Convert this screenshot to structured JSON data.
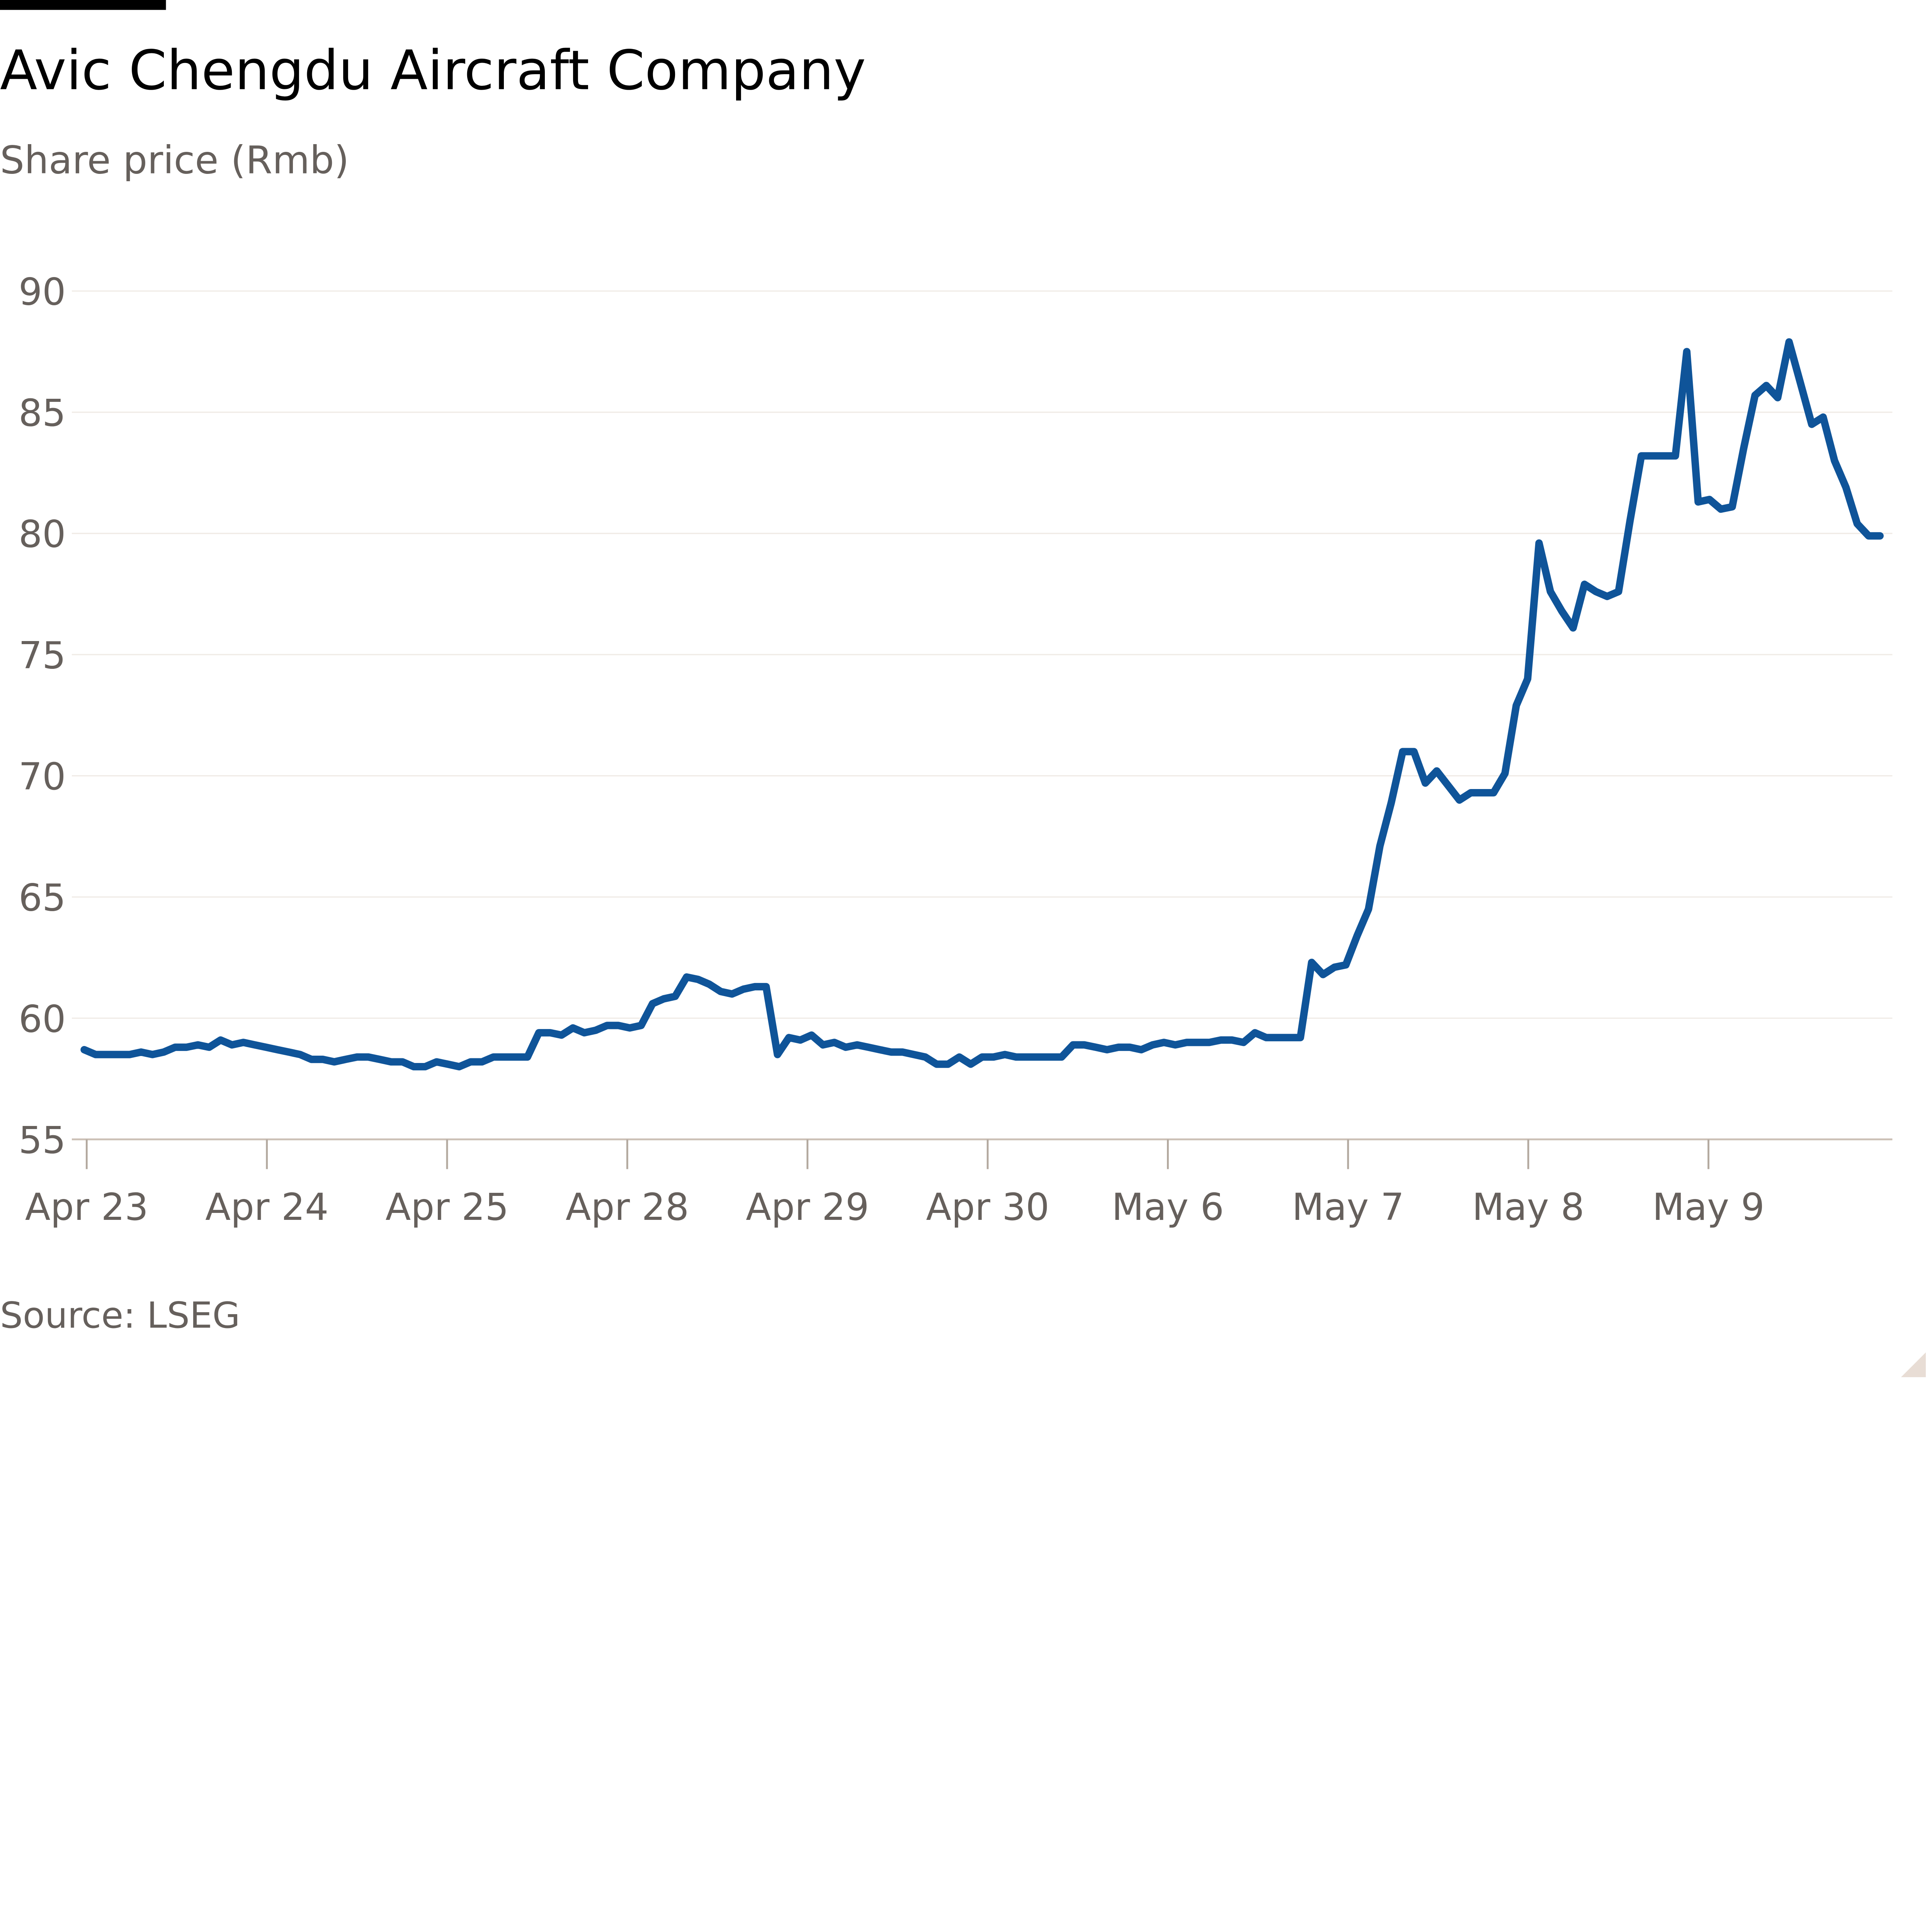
{
  "chart_data": {
    "type": "line",
    "title": "Avic Chengdu Aircraft Company",
    "subtitle": "Share price (Rmb)",
    "source": "Source: LSEG",
    "x_tick_labels": [
      "Apr 23",
      "Apr 24",
      "Apr 25",
      "Apr 28",
      "Apr 29",
      "Apr 30",
      "May 6",
      "May 7",
      "May 8",
      "May 9"
    ],
    "y_ticks": [
      55,
      60,
      65,
      70,
      75,
      80,
      85,
      90
    ],
    "ylim": [
      55,
      90
    ],
    "grid": true,
    "line_color": "#0f5499",
    "series": [
      {
        "values": [
          58.7,
          58.5,
          58.5,
          58.5,
          58.5,
          58.6,
          58.5,
          58.6,
          58.8,
          58.8,
          58.9,
          58.8,
          59.1,
          58.9,
          59.0,
          58.9,
          58.8,
          58.7,
          58.6,
          58.5,
          58.3,
          58.3,
          58.2,
          58.3,
          58.4,
          58.4,
          58.3,
          58.2,
          58.2,
          58.0,
          58.0,
          58.2,
          58.1,
          58.0,
          58.2,
          58.2,
          58.4,
          58.4,
          58.4,
          58.4,
          59.4,
          59.4,
          59.3,
          59.6,
          59.4,
          59.5,
          59.7,
          59.7,
          59.6,
          59.7,
          60.6,
          60.8,
          60.9,
          61.7,
          61.6,
          61.4,
          61.1,
          61.0,
          61.2,
          61.3,
          61.3,
          58.5,
          59.2,
          59.1,
          59.3,
          58.9,
          59.0,
          58.8,
          58.9,
          58.8,
          58.7,
          58.6,
          58.6,
          58.5,
          58.4,
          58.1,
          58.1,
          58.4,
          58.1,
          58.4,
          58.4,
          58.5,
          58.4,
          58.4,
          58.4,
          58.4,
          58.4,
          58.9,
          58.9,
          58.8,
          58.7,
          58.8,
          58.8,
          58.7,
          58.9,
          59.0,
          58.9,
          59.0,
          59.0,
          59.0,
          59.1,
          59.1,
          59.0,
          59.4,
          59.2,
          59.2,
          59.2,
          59.2,
          62.3,
          61.8,
          62.1,
          62.2,
          63.4,
          64.5,
          67.1,
          68.9,
          71.0,
          71.0,
          69.7,
          70.2,
          69.6,
          69.0,
          69.3,
          69.3,
          69.3,
          70.1,
          72.9,
          74.0,
          79.6,
          77.6,
          76.8,
          76.1,
          77.9,
          77.6,
          77.4,
          77.6,
          80.5,
          83.2,
          83.2,
          83.2,
          83.2,
          87.5,
          81.3,
          81.4,
          81.0,
          81.1,
          83.5,
          85.7,
          86.1,
          85.6,
          87.9,
          86.2,
          84.5,
          84.8,
          83.0,
          81.9,
          80.4,
          79.9,
          79.9
        ]
      }
    ]
  }
}
